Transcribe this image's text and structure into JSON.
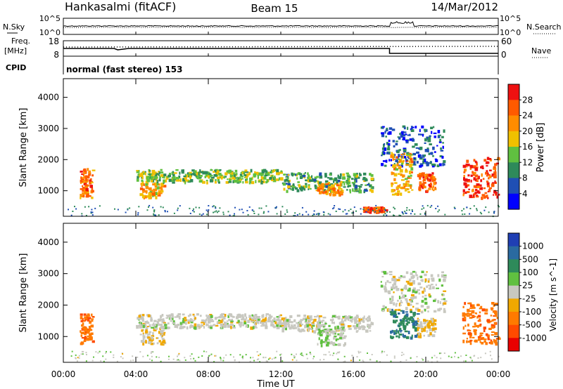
{
  "header": {
    "station": "Hankasalmi (fitACF)",
    "beam": "Beam 15",
    "date": "14/Mar/2012"
  },
  "noise_panel": {
    "left_label": "N.Sky",
    "right_label": "N.Search",
    "left_ticks": [
      "10^5",
      "10^0"
    ],
    "right_ticks": [
      "10^5",
      "10^0"
    ]
  },
  "freq_panel": {
    "left_label_line1": "Freq.",
    "left_label_line2": "[MHz]",
    "left_ticks": [
      "18",
      "8"
    ],
    "right_label": "Nave",
    "right_ticks": [
      "60",
      "0"
    ]
  },
  "cpid_panel": {
    "label": "CPID",
    "text": "normal (fast stereo) 153"
  },
  "power_panel": {
    "ylabel": "Slant Range [km]",
    "yticks": [
      "4000",
      "3000",
      "2000",
      "1000"
    ],
    "colorbar_label": "Power [dB]",
    "colorbar_ticks": [
      "28",
      "24",
      "20",
      "16",
      "12",
      "8",
      "4"
    ],
    "colors": [
      "#0000ff",
      "#1f4fb4",
      "#2e8a5a",
      "#60c040",
      "#f0c000",
      "#ff8c00",
      "#ff5a00",
      "#ee1111"
    ]
  },
  "velocity_panel": {
    "ylabel": "Slant Range [km]",
    "yticks": [
      "4000",
      "3000",
      "2000",
      "1000"
    ],
    "colorbar_label": "Velocity [m s^-1]",
    "colorbar_ticks": [
      "1000",
      "500",
      "100",
      "25",
      "-25",
      "-100",
      "-500",
      "-1000"
    ],
    "colors": [
      "#1f3fb4",
      "#2a6aa0",
      "#2e8a5a",
      "#60c040",
      "#c8c8c0",
      "#f0a800",
      "#ff7a00",
      "#ff4a00",
      "#e80000"
    ]
  },
  "x_axis": {
    "label": "Time UT",
    "ticks": [
      "00:00",
      "04:00",
      "08:00",
      "12:00",
      "16:00",
      "20:00",
      "00:00"
    ]
  },
  "chart_data": [
    {
      "type": "heatmap",
      "title": "Power",
      "x_unit": "hours UT",
      "y_unit": "km",
      "xlim": [
        0,
        24
      ],
      "ylim": [
        180,
        4600
      ],
      "zlim": [
        0,
        32
      ],
      "colorbar_label": "Power [dB]",
      "features": [
        {
          "x": [
            0.9,
            1.6
          ],
          "y": [
            800,
            1750
          ],
          "value": 24
        },
        {
          "x": [
            4.2,
            5.5
          ],
          "y": [
            800,
            1300
          ],
          "value": 20
        },
        {
          "x": [
            4.0,
            12.0
          ],
          "y": [
            1300,
            1700
          ],
          "value": 14
        },
        {
          "x": [
            12.0,
            17.0
          ],
          "y": [
            1000,
            1600
          ],
          "value": 12
        },
        {
          "x": [
            14.0,
            15.3
          ],
          "y": [
            900,
            1250
          ],
          "value": 22
        },
        {
          "x": [
            16.5,
            17.8
          ],
          "y": [
            350,
            500
          ],
          "value": 26
        },
        {
          "x": [
            17.5,
            21.0
          ],
          "y": [
            1800,
            3100
          ],
          "value": 6
        },
        {
          "x": [
            18.0,
            19.2
          ],
          "y": [
            900,
            2300
          ],
          "value": 20
        },
        {
          "x": [
            19.5,
            20.5
          ],
          "y": [
            1000,
            1600
          ],
          "value": 26
        },
        {
          "x": [
            22.0,
            24.0
          ],
          "y": [
            800,
            2100
          ],
          "value": 28
        }
      ]
    },
    {
      "type": "heatmap",
      "title": "Velocity",
      "x_unit": "hours UT",
      "y_unit": "km",
      "xlim": [
        0,
        24
      ],
      "ylim": [
        180,
        4600
      ],
      "zlim": [
        -1000,
        1000
      ],
      "colorbar_label": "Velocity [m s^-1]",
      "features": [
        {
          "x": [
            0.9,
            1.6
          ],
          "y": [
            800,
            1750
          ],
          "value": -500
        },
        {
          "x": [
            4.2,
            5.5
          ],
          "y": [
            800,
            1300
          ],
          "value": -100
        },
        {
          "x": [
            4.0,
            12.0
          ],
          "y": [
            1300,
            1750
          ],
          "value": 0
        },
        {
          "x": [
            12.0,
            17.0
          ],
          "y": [
            1200,
            1700
          ],
          "value": 0
        },
        {
          "x": [
            14.0,
            15.5
          ],
          "y": [
            750,
            1350
          ],
          "value": 100
        },
        {
          "x": [
            17.5,
            21.0
          ],
          "y": [
            1800,
            3100
          ],
          "value": 0
        },
        {
          "x": [
            18.0,
            19.5
          ],
          "y": [
            1000,
            1900
          ],
          "value": 500
        },
        {
          "x": [
            19.5,
            20.5
          ],
          "y": [
            1000,
            1600
          ],
          "value": -100
        },
        {
          "x": [
            22.0,
            24.0
          ],
          "y": [
            800,
            2100
          ],
          "value": -500
        }
      ]
    }
  ]
}
